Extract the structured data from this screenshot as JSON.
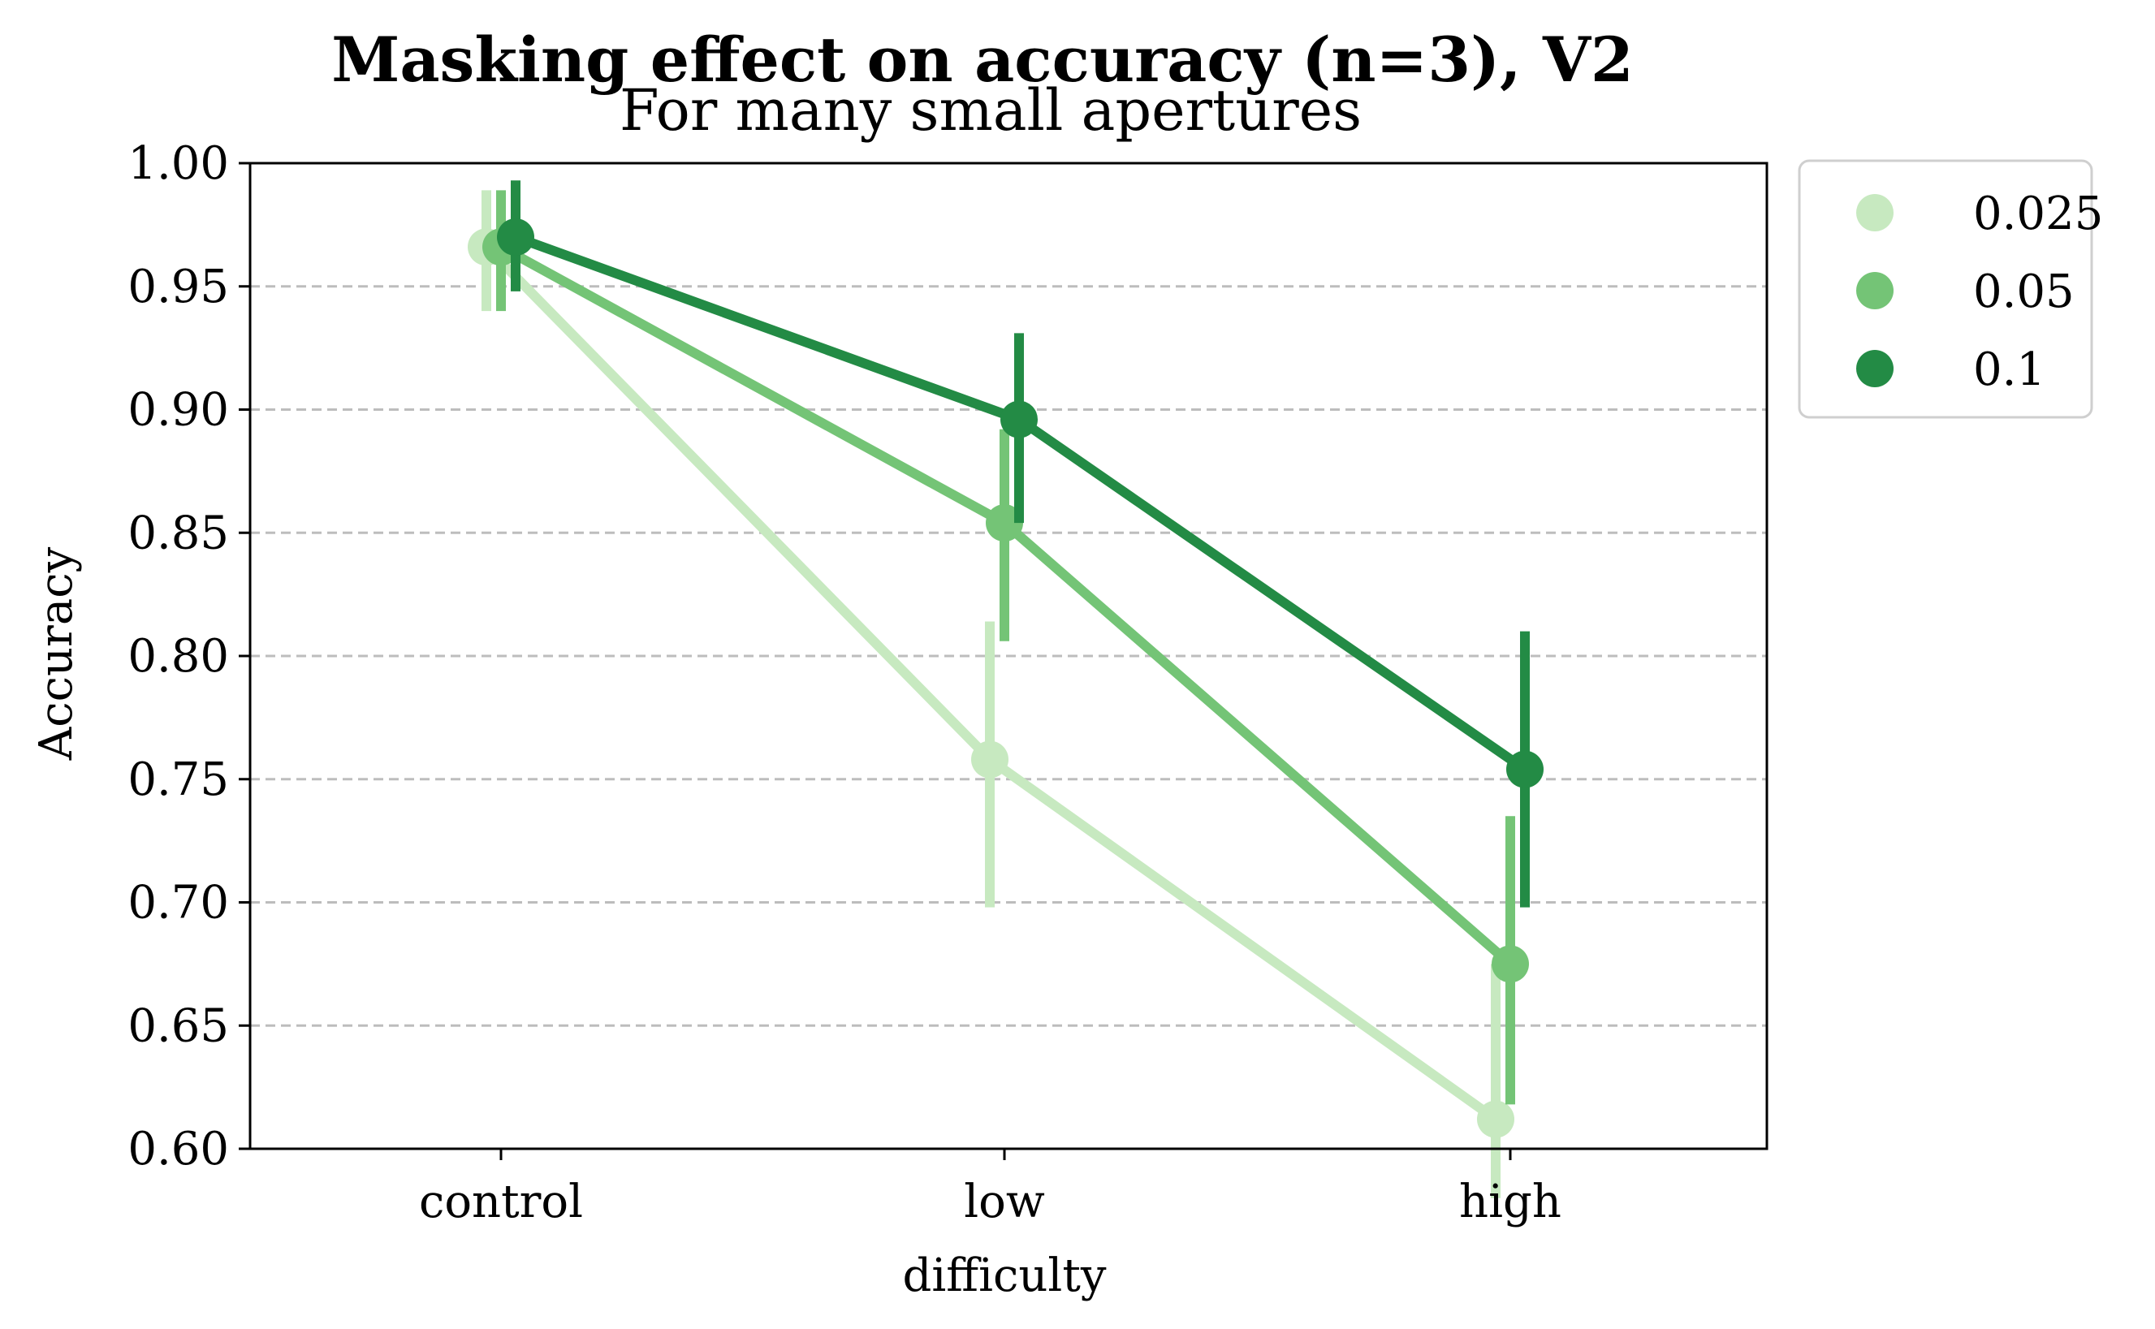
{
  "chart_data": {
    "type": "line",
    "title": "Masking effect on accuracy (n=3), V2",
    "subtitle": "For many small apertures",
    "xlabel": "difficulty",
    "ylabel": "Accuracy",
    "categories": [
      "control",
      "low",
      "high"
    ],
    "ylim": [
      0.6,
      1.0
    ],
    "yticks": [
      "0.60",
      "0.65",
      "0.70",
      "0.75",
      "0.80",
      "0.85",
      "0.90",
      "0.95",
      "1.00"
    ],
    "grid": "horizontal dashed",
    "legend_position": "outside top-right",
    "series": [
      {
        "name": "0.025",
        "color": "#c7e9c0",
        "values": [
          0.966,
          0.758,
          0.612
        ],
        "error_low": [
          0.94,
          0.698,
          0.58
        ],
        "error_high": [
          0.989,
          0.814,
          0.675
        ]
      },
      {
        "name": "0.05",
        "color": "#74c476",
        "values": [
          0.966,
          0.854,
          0.675
        ],
        "error_low": [
          0.94,
          0.806,
          0.618
        ],
        "error_high": [
          0.989,
          0.892,
          0.735
        ]
      },
      {
        "name": "0.1",
        "color": "#238b45",
        "values": [
          0.97,
          0.896,
          0.754
        ],
        "error_low": [
          0.948,
          0.854,
          0.698
        ],
        "error_high": [
          0.993,
          0.931,
          0.81
        ]
      }
    ]
  }
}
